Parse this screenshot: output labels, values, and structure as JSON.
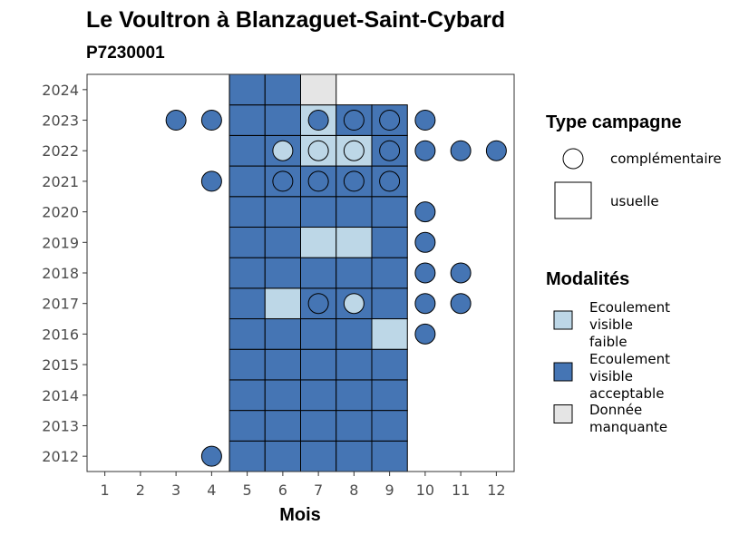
{
  "chart_data": {
    "type": "heatmap",
    "title": "Le Voultron à Blanzaguet-Saint-Cybard",
    "subtitle": "P7230001",
    "xlabel": "Mois",
    "ylabel": "",
    "x_ticks": [
      "1",
      "2",
      "3",
      "4",
      "5",
      "6",
      "7",
      "8",
      "9",
      "10",
      "11",
      "12"
    ],
    "y_ticks": [
      "2012",
      "2013",
      "2014",
      "2015",
      "2016",
      "2017",
      "2018",
      "2019",
      "2020",
      "2021",
      "2022",
      "2023",
      "2024"
    ],
    "xlim": [
      0.5,
      12.5
    ],
    "ylim": [
      2011.5,
      2024.5
    ],
    "colors": {
      "Ecoulement visible faible": "#bdd7e7",
      "Ecoulement visible acceptable": "#4575b4",
      "Donnée manquante": "#e5e5e5"
    },
    "usuelle": [
      {
        "year": 2012,
        "month": 5,
        "modalite": "Ecoulement visible acceptable"
      },
      {
        "year": 2012,
        "month": 6,
        "modalite": "Ecoulement visible acceptable"
      },
      {
        "year": 2012,
        "month": 7,
        "modalite": "Ecoulement visible acceptable"
      },
      {
        "year": 2012,
        "month": 8,
        "modalite": "Ecoulement visible acceptable"
      },
      {
        "year": 2012,
        "month": 9,
        "modalite": "Ecoulement visible acceptable"
      },
      {
        "year": 2013,
        "month": 5,
        "modalite": "Ecoulement visible acceptable"
      },
      {
        "year": 2013,
        "month": 6,
        "modalite": "Ecoulement visible acceptable"
      },
      {
        "year": 2013,
        "month": 7,
        "modalite": "Ecoulement visible acceptable"
      },
      {
        "year": 2013,
        "month": 8,
        "modalite": "Ecoulement visible acceptable"
      },
      {
        "year": 2013,
        "month": 9,
        "modalite": "Ecoulement visible acceptable"
      },
      {
        "year": 2014,
        "month": 5,
        "modalite": "Ecoulement visible acceptable"
      },
      {
        "year": 2014,
        "month": 6,
        "modalite": "Ecoulement visible acceptable"
      },
      {
        "year": 2014,
        "month": 7,
        "modalite": "Ecoulement visible acceptable"
      },
      {
        "year": 2014,
        "month": 8,
        "modalite": "Ecoulement visible acceptable"
      },
      {
        "year": 2014,
        "month": 9,
        "modalite": "Ecoulement visible acceptable"
      },
      {
        "year": 2015,
        "month": 5,
        "modalite": "Ecoulement visible acceptable"
      },
      {
        "year": 2015,
        "month": 6,
        "modalite": "Ecoulement visible acceptable"
      },
      {
        "year": 2015,
        "month": 7,
        "modalite": "Ecoulement visible acceptable"
      },
      {
        "year": 2015,
        "month": 8,
        "modalite": "Ecoulement visible acceptable"
      },
      {
        "year": 2015,
        "month": 9,
        "modalite": "Ecoulement visible acceptable"
      },
      {
        "year": 2016,
        "month": 5,
        "modalite": "Ecoulement visible acceptable"
      },
      {
        "year": 2016,
        "month": 6,
        "modalite": "Ecoulement visible acceptable"
      },
      {
        "year": 2016,
        "month": 7,
        "modalite": "Ecoulement visible acceptable"
      },
      {
        "year": 2016,
        "month": 8,
        "modalite": "Ecoulement visible acceptable"
      },
      {
        "year": 2016,
        "month": 9,
        "modalite": "Ecoulement visible faible"
      },
      {
        "year": 2017,
        "month": 5,
        "modalite": "Ecoulement visible acceptable"
      },
      {
        "year": 2017,
        "month": 6,
        "modalite": "Ecoulement visible faible"
      },
      {
        "year": 2017,
        "month": 7,
        "modalite": "Ecoulement visible acceptable"
      },
      {
        "year": 2017,
        "month": 8,
        "modalite": "Ecoulement visible acceptable"
      },
      {
        "year": 2017,
        "month": 9,
        "modalite": "Ecoulement visible acceptable"
      },
      {
        "year": 2018,
        "month": 5,
        "modalite": "Ecoulement visible acceptable"
      },
      {
        "year": 2018,
        "month": 6,
        "modalite": "Ecoulement visible acceptable"
      },
      {
        "year": 2018,
        "month": 7,
        "modalite": "Ecoulement visible acceptable"
      },
      {
        "year": 2018,
        "month": 8,
        "modalite": "Ecoulement visible acceptable"
      },
      {
        "year": 2018,
        "month": 9,
        "modalite": "Ecoulement visible acceptable"
      },
      {
        "year": 2019,
        "month": 5,
        "modalite": "Ecoulement visible acceptable"
      },
      {
        "year": 2019,
        "month": 6,
        "modalite": "Ecoulement visible acceptable"
      },
      {
        "year": 2019,
        "month": 7,
        "modalite": "Ecoulement visible faible"
      },
      {
        "year": 2019,
        "month": 8,
        "modalite": "Ecoulement visible faible"
      },
      {
        "year": 2019,
        "month": 9,
        "modalite": "Ecoulement visible acceptable"
      },
      {
        "year": 2020,
        "month": 5,
        "modalite": "Ecoulement visible acceptable"
      },
      {
        "year": 2020,
        "month": 6,
        "modalite": "Ecoulement visible acceptable"
      },
      {
        "year": 2020,
        "month": 7,
        "modalite": "Ecoulement visible acceptable"
      },
      {
        "year": 2020,
        "month": 8,
        "modalite": "Ecoulement visible acceptable"
      },
      {
        "year": 2020,
        "month": 9,
        "modalite": "Ecoulement visible acceptable"
      },
      {
        "year": 2021,
        "month": 5,
        "modalite": "Ecoulement visible acceptable"
      },
      {
        "year": 2021,
        "month": 6,
        "modalite": "Ecoulement visible acceptable"
      },
      {
        "year": 2021,
        "month": 7,
        "modalite": "Ecoulement visible acceptable"
      },
      {
        "year": 2021,
        "month": 8,
        "modalite": "Ecoulement visible acceptable"
      },
      {
        "year": 2021,
        "month": 9,
        "modalite": "Ecoulement visible acceptable"
      },
      {
        "year": 2022,
        "month": 5,
        "modalite": "Ecoulement visible acceptable"
      },
      {
        "year": 2022,
        "month": 6,
        "modalite": "Ecoulement visible acceptable"
      },
      {
        "year": 2022,
        "month": 7,
        "modalite": "Ecoulement visible faible"
      },
      {
        "year": 2022,
        "month": 8,
        "modalite": "Ecoulement visible faible"
      },
      {
        "year": 2022,
        "month": 9,
        "modalite": "Ecoulement visible acceptable"
      },
      {
        "year": 2023,
        "month": 5,
        "modalite": "Ecoulement visible acceptable"
      },
      {
        "year": 2023,
        "month": 6,
        "modalite": "Ecoulement visible acceptable"
      },
      {
        "year": 2023,
        "month": 7,
        "modalite": "Ecoulement visible faible"
      },
      {
        "year": 2023,
        "month": 8,
        "modalite": "Ecoulement visible acceptable"
      },
      {
        "year": 2023,
        "month": 9,
        "modalite": "Ecoulement visible acceptable"
      },
      {
        "year": 2024,
        "month": 5,
        "modalite": "Ecoulement visible acceptable"
      },
      {
        "year": 2024,
        "month": 6,
        "modalite": "Ecoulement visible acceptable"
      },
      {
        "year": 2024,
        "month": 7,
        "modalite": "Donnée manquante"
      }
    ],
    "complementaire": [
      {
        "year": 2012,
        "month": 4,
        "modalite": "Ecoulement visible acceptable"
      },
      {
        "year": 2016,
        "month": 10,
        "modalite": "Ecoulement visible acceptable"
      },
      {
        "year": 2017,
        "month": 7,
        "modalite": "Ecoulement visible acceptable"
      },
      {
        "year": 2017,
        "month": 8,
        "modalite": "Ecoulement visible faible"
      },
      {
        "year": 2017,
        "month": 10,
        "modalite": "Ecoulement visible acceptable"
      },
      {
        "year": 2017,
        "month": 11,
        "modalite": "Ecoulement visible acceptable"
      },
      {
        "year": 2018,
        "month": 10,
        "modalite": "Ecoulement visible acceptable"
      },
      {
        "year": 2018,
        "month": 11,
        "modalite": "Ecoulement visible acceptable"
      },
      {
        "year": 2019,
        "month": 10,
        "modalite": "Ecoulement visible acceptable"
      },
      {
        "year": 2020,
        "month": 10,
        "modalite": "Ecoulement visible acceptable"
      },
      {
        "year": 2021,
        "month": 4,
        "modalite": "Ecoulement visible acceptable"
      },
      {
        "year": 2021,
        "month": 6,
        "modalite": "Ecoulement visible acceptable"
      },
      {
        "year": 2021,
        "month": 7,
        "modalite": "Ecoulement visible acceptable"
      },
      {
        "year": 2021,
        "month": 8,
        "modalite": "Ecoulement visible acceptable"
      },
      {
        "year": 2021,
        "month": 9,
        "modalite": "Ecoulement visible acceptable"
      },
      {
        "year": 2022,
        "month": 6,
        "modalite": "Ecoulement visible faible"
      },
      {
        "year": 2022,
        "month": 7,
        "modalite": "Ecoulement visible faible"
      },
      {
        "year": 2022,
        "month": 8,
        "modalite": "Ecoulement visible faible"
      },
      {
        "year": 2022,
        "month": 9,
        "modalite": "Ecoulement visible acceptable"
      },
      {
        "year": 2022,
        "month": 10,
        "modalite": "Ecoulement visible acceptable"
      },
      {
        "year": 2022,
        "month": 11,
        "modalite": "Ecoulement visible acceptable"
      },
      {
        "year": 2022,
        "month": 12,
        "modalite": "Ecoulement visible acceptable"
      },
      {
        "year": 2023,
        "month": 3,
        "modalite": "Ecoulement visible acceptable"
      },
      {
        "year": 2023,
        "month": 4,
        "modalite": "Ecoulement visible acceptable"
      },
      {
        "year": 2023,
        "month": 7,
        "modalite": "Ecoulement visible acceptable"
      },
      {
        "year": 2023,
        "month": 8,
        "modalite": "Ecoulement visible acceptable"
      },
      {
        "year": 2023,
        "month": 9,
        "modalite": "Ecoulement visible acceptable"
      },
      {
        "year": 2023,
        "month": 10,
        "modalite": "Ecoulement visible acceptable"
      }
    ]
  },
  "legend": {
    "type_title": "Type campagne",
    "type_items": [
      "complémentaire",
      "usuelle"
    ],
    "modalites_title": "Modalités",
    "modalites_items": [
      {
        "lines": [
          "Ecoulement",
          "visible",
          "faible"
        ],
        "color": "#bdd7e7"
      },
      {
        "lines": [
          "Ecoulement",
          "visible",
          "acceptable"
        ],
        "color": "#4575b4"
      },
      {
        "lines": [
          "Donnée",
          "manquante"
        ],
        "color": "#e5e5e5"
      }
    ]
  }
}
